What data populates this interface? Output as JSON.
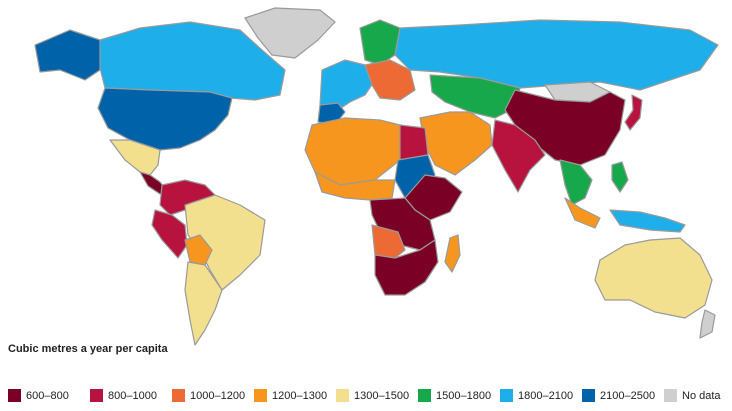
{
  "legend": {
    "title": "Cubic metres a year per capita",
    "items": [
      {
        "label": "600–800",
        "color": "#7a0025"
      },
      {
        "label": "800–1000",
        "color": "#b8123e"
      },
      {
        "label": "1000–1200",
        "color": "#ee6a35"
      },
      {
        "label": "1200–1300",
        "color": "#f7961f"
      },
      {
        "label": "1300–1500",
        "color": "#f3e08e"
      },
      {
        "label": "1500–1800",
        "color": "#18a84c"
      },
      {
        "label": "1800–2100",
        "color": "#1eaeea"
      },
      {
        "label": "2100–2500",
        "color": "#0062a9"
      },
      {
        "label": "No data",
        "color": "#cfcfcf"
      }
    ]
  }
}
